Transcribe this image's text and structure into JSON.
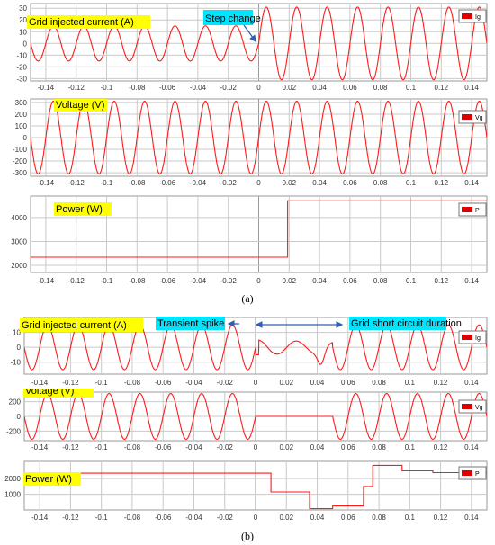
{
  "captions": [
    "(a)",
    "(b)"
  ],
  "colors": {
    "signal": "#ff1a1a",
    "highlight_yellow": "#ffff00",
    "highlight_cyan": "#00e5ff",
    "arrow": "#2f5fb3",
    "grid": "#c9c9c9",
    "frame": "#9a9a9a",
    "legend_swatch": "#dd0000"
  },
  "chart_data": [
    {
      "type": "line",
      "figure": "a",
      "label": "Grid injected current (A)",
      "legend": "Ig",
      "annotations": [
        "Step change"
      ],
      "xlim": [
        -0.15,
        0.15
      ],
      "ylim": [
        -32,
        34
      ],
      "x_ticks": [
        -0.14,
        -0.12,
        -0.1,
        -0.08,
        -0.06,
        -0.04,
        -0.02,
        0,
        0.02,
        0.04,
        0.06,
        0.08,
        0.1,
        0.12,
        0.14
      ],
      "y_ticks": [
        -30,
        -20,
        -10,
        0,
        10,
        20,
        30
      ],
      "signal": {
        "kind": "sine",
        "frequency_hz": 50,
        "segments": [
          {
            "x_start": -0.15,
            "x_end": 0,
            "amplitude": 15
          },
          {
            "x_start": 0,
            "x_end": 0.15,
            "amplitude": 31
          }
        ]
      },
      "grid": true
    },
    {
      "type": "line",
      "figure": "a",
      "label": "Voltage (V)",
      "legend": "Vg",
      "xlim": [
        -0.15,
        0.15
      ],
      "ylim": [
        -330,
        330
      ],
      "x_ticks": [
        -0.14,
        -0.12,
        -0.1,
        -0.08,
        -0.06,
        -0.04,
        -0.02,
        0,
        0.02,
        0.04,
        0.06,
        0.08,
        0.1,
        0.12,
        0.14
      ],
      "y_ticks": [
        -300,
        -200,
        -100,
        0,
        100,
        200,
        300
      ],
      "signal": {
        "kind": "sine",
        "frequency_hz": 50,
        "segments": [
          {
            "x_start": -0.15,
            "x_end": 0.15,
            "amplitude": 311
          }
        ]
      },
      "grid": true
    },
    {
      "type": "line",
      "figure": "a",
      "label": "Power (W)",
      "legend": "P",
      "xlim": [
        -0.15,
        0.15
      ],
      "ylim": [
        1700,
        4900
      ],
      "x_ticks": [
        -0.14,
        -0.12,
        -0.1,
        -0.08,
        -0.06,
        -0.04,
        -0.02,
        0,
        0.02,
        0.04,
        0.06,
        0.08,
        0.1,
        0.12,
        0.14
      ],
      "y_ticks": [
        2000,
        3000,
        4000
      ],
      "points": [
        [
          -0.15,
          2340
        ],
        [
          0.019,
          2340
        ],
        [
          0.019,
          4700
        ],
        [
          0.15,
          4700
        ]
      ],
      "grid": true
    },
    {
      "type": "line",
      "figure": "b",
      "label": "Grid injected current (A)",
      "legend": "Ig",
      "annotations": [
        "Transient spike",
        "Grid short circuit duration"
      ],
      "xlim": [
        -0.15,
        0.15
      ],
      "ylim": [
        -18,
        20
      ],
      "x_ticks": [
        -0.14,
        -0.12,
        -0.1,
        -0.08,
        -0.06,
        -0.04,
        -0.02,
        0,
        0.02,
        0.04,
        0.06,
        0.08,
        0.1,
        0.12,
        0.14
      ],
      "y_ticks": [
        -10,
        0,
        10
      ],
      "signal": {
        "kind": "piecewise",
        "frequency_hz": 50,
        "segments": [
          {
            "x_start": -0.15,
            "x_end": 0,
            "amplitude": 15
          },
          {
            "x_start": 0,
            "x_end": 0.05,
            "amplitude": 5,
            "note": "distorted during short circuit"
          },
          {
            "x_start": 0.05,
            "x_end": 0.15,
            "amplitude": 15
          }
        ]
      },
      "grid": true
    },
    {
      "type": "line",
      "figure": "b",
      "label": "Voltage (V)",
      "legend": "Vg",
      "xlim": [
        -0.15,
        0.15
      ],
      "ylim": [
        -330,
        330
      ],
      "x_ticks": [
        -0.14,
        -0.12,
        -0.1,
        -0.08,
        -0.06,
        -0.04,
        -0.02,
        0,
        0.02,
        0.04,
        0.06,
        0.08,
        0.1,
        0.12,
        0.14
      ],
      "y_ticks": [
        -200,
        0,
        200
      ],
      "signal": {
        "kind": "sine",
        "frequency_hz": 50,
        "segments": [
          {
            "x_start": -0.15,
            "x_end": 0,
            "amplitude": 311
          },
          {
            "x_start": 0,
            "x_end": 0.05,
            "amplitude": 0
          },
          {
            "x_start": 0.05,
            "x_end": 0.15,
            "amplitude": 311
          }
        ]
      },
      "grid": true
    },
    {
      "type": "line",
      "figure": "b",
      "label": "Power (W)",
      "legend": "P",
      "xlim": [
        -0.15,
        0.15
      ],
      "ylim": [
        0,
        3100
      ],
      "x_ticks": [
        -0.14,
        -0.12,
        -0.1,
        -0.08,
        -0.06,
        -0.04,
        -0.02,
        0,
        0.02,
        0.04,
        0.06,
        0.08,
        0.1,
        0.12,
        0.14
      ],
      "y_ticks": [
        1000,
        2000
      ],
      "points": [
        [
          -0.15,
          2350
        ],
        [
          0.01,
          2350
        ],
        [
          0.01,
          1150
        ],
        [
          0.035,
          1150
        ],
        [
          0.035,
          80
        ],
        [
          0.05,
          80
        ],
        [
          0.05,
          250
        ],
        [
          0.07,
          250
        ],
        [
          0.07,
          1500
        ],
        [
          0.076,
          1500
        ],
        [
          0.076,
          2850
        ],
        [
          0.095,
          2850
        ],
        [
          0.095,
          2500
        ],
        [
          0.115,
          2500
        ],
        [
          0.115,
          2380
        ],
        [
          0.15,
          2380
        ]
      ],
      "grid": true
    }
  ]
}
